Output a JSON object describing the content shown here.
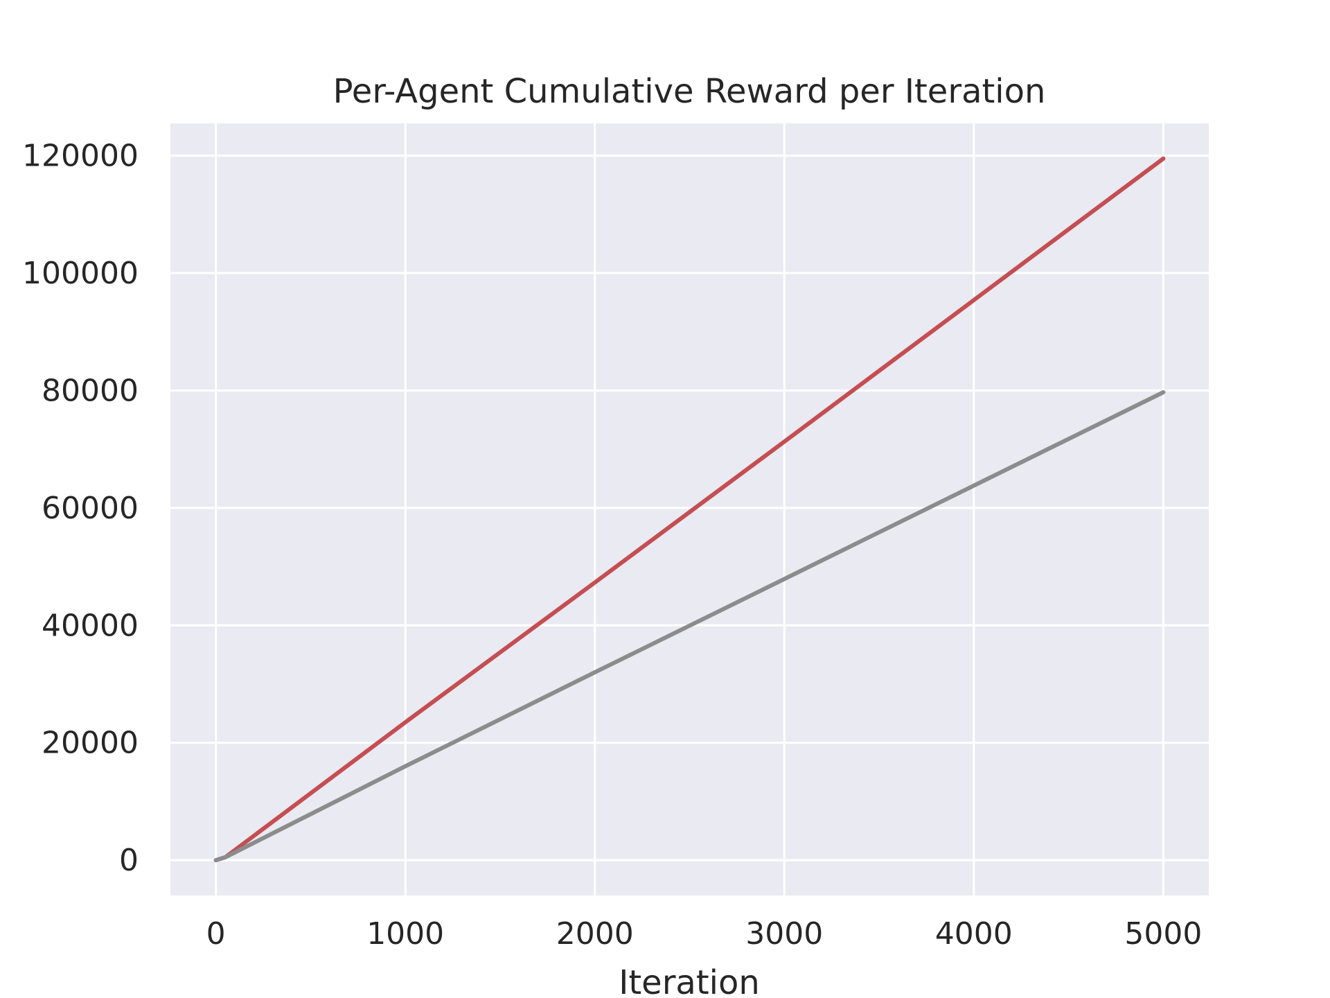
{
  "chart_data": {
    "type": "line",
    "title": "Per-Agent Cumulative Reward per Iteration",
    "xlabel": "Iteration",
    "ylabel": "",
    "xlim": [
      -240,
      5240
    ],
    "ylim": [
      -6000,
      125500
    ],
    "xticks": [
      0,
      1000,
      2000,
      3000,
      4000,
      5000
    ],
    "yticks": [
      0,
      20000,
      40000,
      60000,
      80000,
      100000,
      120000
    ],
    "grid": true,
    "background": "#eaeaf2",
    "series": [
      {
        "color": "#c44e52",
        "x": [
          0,
          50,
          1000,
          2000,
          3000,
          4000,
          5000
        ],
        "y": [
          0,
          500,
          23500,
          47300,
          71300,
          95400,
          119500
        ]
      },
      {
        "color": "#8c8c8c",
        "x": [
          0,
          50,
          1000,
          2000,
          3000,
          4000,
          5000
        ],
        "y": [
          0,
          500,
          16000,
          32000,
          47900,
          63800,
          79700
        ]
      }
    ]
  }
}
